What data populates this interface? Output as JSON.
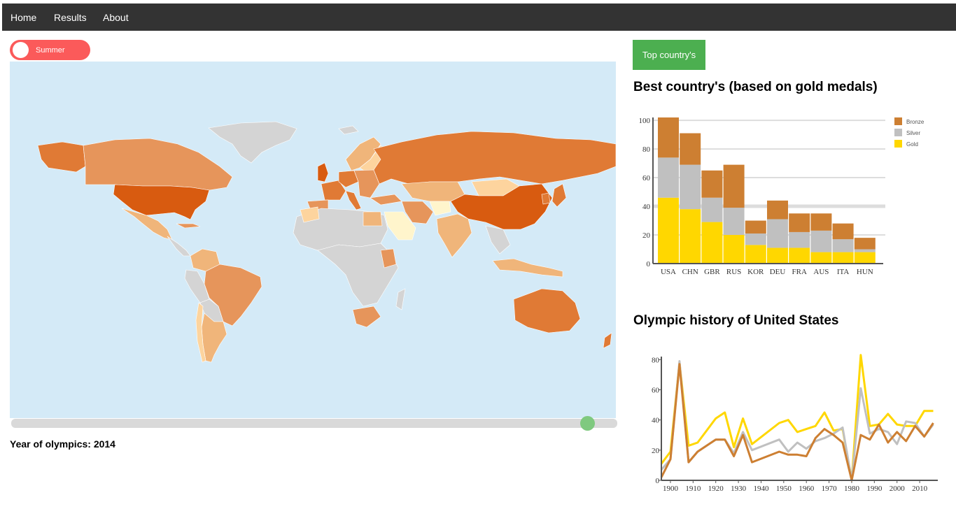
{
  "nav": {
    "items": [
      "Home",
      "Results",
      "About"
    ]
  },
  "toggle": {
    "label": "Summer",
    "color": "#fb5a5a"
  },
  "map": {
    "ocean_color": "#d4eaf7",
    "scale_colors": [
      "#fff5cc",
      "#fdd49e",
      "#f0b57a",
      "#e6955b",
      "#e07a35",
      "#d85b10"
    ],
    "no_data_color": "#d4d4d4"
  },
  "slider": {
    "value": 2014
  },
  "year_label": "Year of olympics: 2014",
  "top_button": {
    "label": "Top country's",
    "color": "#4caf50"
  },
  "best_title": "Best country's (based on gold medals)",
  "history_title": "Olympic history of United States",
  "colors": {
    "gold": "#ffd700",
    "silver": "#c0c0c0",
    "bronze": "#cd7f32"
  },
  "chart_data": [
    {
      "type": "bar",
      "stacked": true,
      "categories": [
        "USA",
        "CHN",
        "GBR",
        "RUS",
        "KOR",
        "DEU",
        "FRA",
        "AUS",
        "ITA",
        "HUN"
      ],
      "series": [
        {
          "name": "Gold",
          "values": [
            46,
            38,
            29,
            20,
            13,
            11,
            11,
            8,
            8,
            8
          ]
        },
        {
          "name": "Silver",
          "values": [
            28,
            31,
            17,
            19,
            8,
            20,
            11,
            15,
            9,
            2
          ]
        },
        {
          "name": "Bronze",
          "values": [
            28,
            22,
            19,
            30,
            9,
            13,
            13,
            12,
            11,
            8
          ]
        }
      ],
      "legend": [
        "Bronze",
        "Silver",
        "Gold"
      ],
      "y_ticks": [
        0,
        20,
        40,
        60,
        80,
        100
      ],
      "ylim": [
        0,
        102
      ]
    },
    {
      "type": "line",
      "x": [
        1896,
        1900,
        1904,
        1908,
        1912,
        1920,
        1924,
        1928,
        1932,
        1936,
        1948,
        1952,
        1956,
        1960,
        1964,
        1968,
        1972,
        1976,
        1980,
        1984,
        1988,
        1992,
        1996,
        2000,
        2004,
        2008,
        2012,
        2016
      ],
      "series": [
        {
          "name": "Gold",
          "values": [
            11,
            19,
            78,
            23,
            25,
            41,
            45,
            22,
            41,
            24,
            38,
            40,
            32,
            34,
            36,
            45,
            33,
            34,
            0,
            83,
            36,
            37,
            44,
            37,
            36,
            36,
            46,
            46
          ]
        },
        {
          "name": "Silver",
          "values": [
            7,
            14,
            79,
            12,
            19,
            27,
            27,
            18,
            32,
            20,
            27,
            19,
            25,
            21,
            26,
            28,
            31,
            35,
            0,
            61,
            31,
            34,
            32,
            24,
            39,
            38,
            29,
            37
          ]
        },
        {
          "name": "Bronze",
          "values": [
            2,
            14,
            77,
            12,
            19,
            27,
            27,
            16,
            30,
            12,
            19,
            17,
            17,
            16,
            28,
            34,
            30,
            25,
            0,
            30,
            27,
            37,
            25,
            32,
            26,
            36,
            29,
            38
          ]
        }
      ],
      "x_ticks": [
        1900,
        1910,
        1920,
        1930,
        1940,
        1950,
        1960,
        1970,
        1980,
        1990,
        2000,
        2010
      ],
      "y_ticks": [
        0,
        20,
        40,
        60,
        80
      ],
      "xlim": [
        1896,
        2018
      ],
      "ylim": [
        0,
        82
      ]
    }
  ]
}
